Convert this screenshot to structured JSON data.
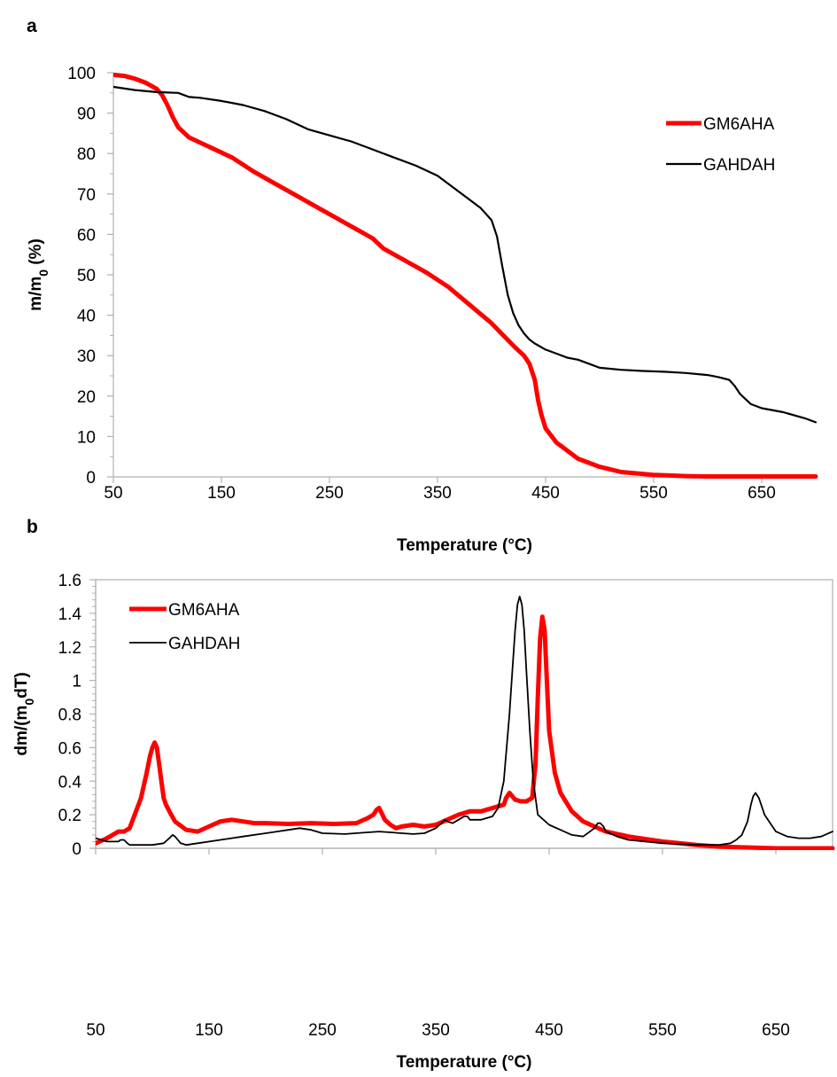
{
  "chart_data": [
    {
      "panel_label": "a",
      "type": "line",
      "xlabel": "Temperature (°C)",
      "ylabel": {
        "main": "m/m",
        "sub": "0",
        "tail": "  (%)"
      },
      "xlim": [
        50,
        700
      ],
      "ylim": [
        0,
        100
      ],
      "xticks": [
        "50",
        "150",
        "250",
        "350",
        "450",
        "550",
        "650"
      ],
      "yticks": [
        "0",
        "10",
        "20",
        "30",
        "40",
        "50",
        "60",
        "70",
        "80",
        "90",
        "100"
      ],
      "legend_position": "top-right",
      "series": [
        {
          "name": "GM6AHA",
          "color": "#ff0000",
          "x": [
            50,
            60,
            70,
            80,
            90,
            95,
            100,
            105,
            110,
            120,
            140,
            160,
            180,
            200,
            220,
            240,
            260,
            280,
            290,
            300,
            320,
            340,
            360,
            380,
            400,
            420,
            430,
            435,
            440,
            443,
            446,
            450,
            460,
            480,
            500,
            520,
            550,
            580,
            600,
            650,
            700
          ],
          "y": [
            99.5,
            99.2,
            98.5,
            97.5,
            96.0,
            94.5,
            92.0,
            89.0,
            86.5,
            84.0,
            81.5,
            79.0,
            75.5,
            72.5,
            69.5,
            66.5,
            63.5,
            60.5,
            59.0,
            56.5,
            53.5,
            50.5,
            47.0,
            42.5,
            38.0,
            32.5,
            30.0,
            28.0,
            24.0,
            19.0,
            15.5,
            12.0,
            8.5,
            4.5,
            2.5,
            1.2,
            0.5,
            0.2,
            0.1,
            0.1,
            0.1
          ]
        },
        {
          "name": "GAHDAH",
          "color": "#000000",
          "x": [
            50,
            70,
            90,
            110,
            120,
            130,
            150,
            170,
            190,
            210,
            230,
            250,
            270,
            290,
            310,
            330,
            350,
            360,
            370,
            380,
            390,
            400,
            405,
            410,
            415,
            420,
            425,
            430,
            435,
            440,
            450,
            460,
            470,
            480,
            490,
            500,
            520,
            540,
            560,
            580,
            600,
            610,
            620,
            625,
            630,
            640,
            650,
            670,
            690,
            700
          ],
          "y": [
            96.5,
            95.7,
            95.2,
            95.0,
            94.0,
            93.8,
            93.0,
            92.0,
            90.5,
            88.5,
            86.0,
            84.5,
            83.0,
            81.0,
            79.0,
            77.0,
            74.5,
            72.5,
            70.5,
            68.5,
            66.5,
            63.5,
            59.5,
            52.0,
            45.0,
            40.5,
            37.5,
            35.5,
            34.0,
            33.0,
            31.5,
            30.5,
            29.5,
            29.0,
            28.0,
            27.0,
            26.5,
            26.2,
            26.0,
            25.7,
            25.2,
            24.7,
            24.0,
            22.5,
            20.5,
            18.0,
            17.0,
            16.0,
            14.5,
            13.5
          ]
        }
      ]
    },
    {
      "panel_label": "b",
      "type": "line",
      "xlabel": "Temperature (°C)",
      "ylabel": {
        "main": "dm/(m",
        "sub": "0",
        "tail": "dT)"
      },
      "xlim": [
        50,
        700
      ],
      "ylim": [
        0,
        1.6
      ],
      "xticks": [
        "50",
        "150",
        "250",
        "350",
        "450",
        "550",
        "650"
      ],
      "yticks": [
        "0",
        "0.2",
        "0.4",
        "0.6",
        "0.8",
        "1",
        "1.2",
        "1.4",
        "1.6"
      ],
      "legend_position": "top-left",
      "series": [
        {
          "name": "GM6AHA",
          "color": "#ff0000",
          "x": [
            50,
            60,
            65,
            70,
            75,
            80,
            90,
            95,
            98,
            100,
            102,
            104,
            106,
            108,
            110,
            112,
            115,
            120,
            130,
            140,
            150,
            160,
            170,
            180,
            190,
            200,
            220,
            240,
            260,
            280,
            290,
            295,
            298,
            300,
            303,
            305,
            310,
            315,
            320,
            330,
            340,
            350,
            360,
            370,
            380,
            390,
            400,
            410,
            412,
            415,
            420,
            425,
            430,
            435,
            438,
            440,
            442,
            444,
            446,
            448,
            450,
            455,
            460,
            470,
            480,
            500,
            520,
            550,
            580,
            600,
            650,
            700
          ],
          "y": [
            0.03,
            0.06,
            0.08,
            0.1,
            0.1,
            0.12,
            0.3,
            0.45,
            0.55,
            0.6,
            0.63,
            0.6,
            0.5,
            0.4,
            0.3,
            0.26,
            0.22,
            0.16,
            0.11,
            0.1,
            0.13,
            0.16,
            0.17,
            0.16,
            0.15,
            0.15,
            0.145,
            0.15,
            0.145,
            0.15,
            0.18,
            0.2,
            0.23,
            0.24,
            0.2,
            0.17,
            0.14,
            0.12,
            0.13,
            0.14,
            0.13,
            0.14,
            0.17,
            0.2,
            0.22,
            0.22,
            0.24,
            0.26,
            0.3,
            0.33,
            0.29,
            0.28,
            0.28,
            0.3,
            0.5,
            0.9,
            1.25,
            1.38,
            1.3,
            1.0,
            0.7,
            0.45,
            0.33,
            0.22,
            0.16,
            0.1,
            0.07,
            0.04,
            0.02,
            0.01,
            0.0,
            0.0
          ]
        },
        {
          "name": "GAHDAH",
          "color": "#000000",
          "x": [
            50,
            60,
            70,
            72,
            75,
            78,
            80,
            90,
            100,
            110,
            115,
            118,
            120,
            125,
            130,
            140,
            160,
            180,
            200,
            210,
            220,
            230,
            240,
            250,
            270,
            290,
            300,
            310,
            320,
            330,
            340,
            350,
            355,
            358,
            360,
            365,
            370,
            375,
            378,
            380,
            390,
            400,
            405,
            410,
            415,
            418,
            420,
            422,
            424,
            426,
            428,
            430,
            433,
            436,
            440,
            450,
            460,
            470,
            480,
            490,
            493,
            495,
            498,
            500,
            510,
            520,
            550,
            580,
            600,
            610,
            615,
            620,
            625,
            628,
            630,
            632,
            635,
            640,
            650,
            660,
            670,
            680,
            690,
            700
          ],
          "y": [
            0.06,
            0.04,
            0.04,
            0.05,
            0.05,
            0.03,
            0.02,
            0.02,
            0.02,
            0.03,
            0.06,
            0.08,
            0.07,
            0.03,
            0.02,
            0.03,
            0.05,
            0.07,
            0.09,
            0.1,
            0.11,
            0.12,
            0.11,
            0.09,
            0.085,
            0.095,
            0.1,
            0.095,
            0.09,
            0.085,
            0.09,
            0.12,
            0.15,
            0.17,
            0.16,
            0.15,
            0.17,
            0.19,
            0.19,
            0.17,
            0.17,
            0.19,
            0.24,
            0.4,
            0.8,
            1.1,
            1.3,
            1.45,
            1.5,
            1.45,
            1.3,
            1.05,
            0.7,
            0.4,
            0.2,
            0.14,
            0.11,
            0.08,
            0.07,
            0.12,
            0.15,
            0.15,
            0.13,
            0.1,
            0.07,
            0.05,
            0.03,
            0.02,
            0.02,
            0.03,
            0.05,
            0.08,
            0.16,
            0.26,
            0.31,
            0.33,
            0.3,
            0.2,
            0.1,
            0.07,
            0.06,
            0.06,
            0.07,
            0.1
          ]
        }
      ]
    }
  ]
}
